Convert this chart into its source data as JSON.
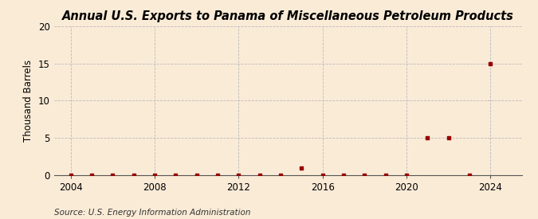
{
  "title": "Annual U.S. Exports to Panama of Miscellaneous Petroleum Products",
  "ylabel": "Thousand Barrels",
  "source": "Source: U.S. Energy Information Administration",
  "background_color": "#faebd7",
  "xlim": [
    2003.2,
    2025.5
  ],
  "ylim": [
    0,
    20
  ],
  "yticks": [
    0,
    5,
    10,
    15,
    20
  ],
  "xticks": [
    2004,
    2008,
    2012,
    2016,
    2020,
    2024
  ],
  "years": [
    2004,
    2005,
    2006,
    2007,
    2008,
    2009,
    2010,
    2011,
    2012,
    2013,
    2014,
    2015,
    2016,
    2017,
    2018,
    2019,
    2020,
    2021,
    2022,
    2023,
    2024
  ],
  "values": [
    0,
    0,
    0,
    0,
    0,
    0,
    0,
    0,
    0,
    0,
    0,
    1,
    0,
    0,
    0,
    0,
    0,
    5,
    5,
    0,
    15
  ],
  "marker_color": "#990000",
  "marker_size": 3.5,
  "grid_color": "#bbbbbb",
  "grid_linestyle": "--",
  "title_fontsize": 10.5,
  "label_fontsize": 8.5,
  "tick_fontsize": 8.5,
  "source_fontsize": 7.5
}
